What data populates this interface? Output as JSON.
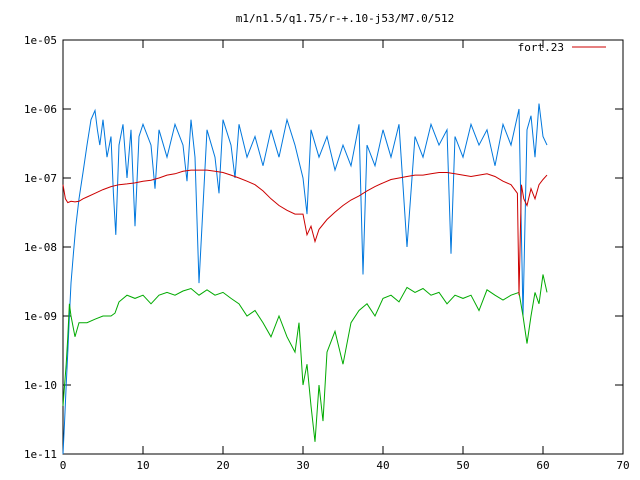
{
  "chart_data": {
    "type": "line",
    "title": "m1/n1.5/q1.75/r-+.10-j53/M7.0/512",
    "xlabel": "",
    "ylabel": "",
    "xlim": [
      0,
      70
    ],
    "ylim": [
      1e-11,
      1e-05
    ],
    "yscale": "log",
    "grid": false,
    "legend_position": "top-right",
    "x_ticks": [
      0,
      10,
      20,
      30,
      40,
      50,
      60,
      70
    ],
    "x_tick_labels": [
      "0",
      "10",
      "20",
      "30",
      "40",
      "50",
      "60",
      "70"
    ],
    "y_ticks": [
      1e-11,
      1e-10,
      1e-09,
      1e-08,
      1e-07,
      1e-06,
      1e-05
    ],
    "y_tick_labels": [
      "1e-11",
      "1e-10",
      "1e-09",
      "1e-08",
      "1e-07",
      "1e-06",
      "1e-05"
    ],
    "series": [
      {
        "name": "fort.23",
        "color": "#cc0000",
        "x": [
          0.0,
          0.3,
          0.6,
          1.0,
          1.5,
          2.0,
          2.5,
          3.0,
          4.0,
          5.0,
          6.0,
          7.0,
          8.0,
          9.0,
          10.0,
          11.0,
          12.0,
          13.0,
          14.0,
          15.0,
          16.0,
          17.0,
          18.0,
          19.0,
          20.0,
          21.0,
          22.0,
          23.0,
          24.0,
          25.0,
          26.0,
          27.0,
          28.0,
          29.0,
          30.0,
          30.5,
          31.0,
          31.5,
          32.0,
          33.0,
          34.0,
          35.0,
          36.0,
          37.0,
          38.0,
          39.0,
          40.0,
          41.0,
          42.0,
          43.0,
          44.0,
          45.0,
          46.0,
          47.0,
          48.0,
          49.0,
          50.0,
          51.0,
          52.0,
          53.0,
          54.0,
          55.0,
          56.0,
          56.8,
          57.0,
          57.3,
          57.6,
          58.0,
          58.5,
          59.0,
          59.5,
          60.0,
          60.5
        ],
        "y": [
          8e-08,
          5e-08,
          4.4e-08,
          4.6e-08,
          4.5e-08,
          4.6e-08,
          5e-08,
          5.3e-08,
          6e-08,
          6.8e-08,
          7.5e-08,
          8e-08,
          8.2e-08,
          8.5e-08,
          9e-08,
          9.3e-08,
          1e-07,
          1.1e-07,
          1.15e-07,
          1.25e-07,
          1.3e-07,
          1.3e-07,
          1.3e-07,
          1.25e-07,
          1.2e-07,
          1.1e-07,
          1e-07,
          9e-08,
          8e-08,
          6.5e-08,
          5e-08,
          4e-08,
          3.4e-08,
          3e-08,
          3e-08,
          1.5e-08,
          2e-08,
          1.2e-08,
          1.8e-08,
          2.5e-08,
          3.2e-08,
          4e-08,
          4.8e-08,
          5.5e-08,
          6.5e-08,
          7.5e-08,
          8.5e-08,
          9.5e-08,
          1e-07,
          1.05e-07,
          1.1e-07,
          1.1e-07,
          1.15e-07,
          1.2e-07,
          1.2e-07,
          1.15e-07,
          1.1e-07,
          1.05e-07,
          1.1e-07,
          1.15e-07,
          1.05e-07,
          9e-08,
          8e-08,
          6e-08,
          2e-09,
          8e-08,
          5e-08,
          4e-08,
          7e-08,
          5e-08,
          8e-08,
          9.5e-08,
          1.1e-07
        ]
      },
      {
        "name": "",
        "color": "#0077dd",
        "x": [
          0.0,
          0.2,
          0.4,
          0.6,
          0.8,
          1.0,
          1.3,
          1.6,
          2.0,
          2.5,
          3.0,
          3.5,
          4.0,
          4.3,
          4.6,
          5.0,
          5.5,
          6.0,
          6.3,
          6.6,
          7.0,
          7.5,
          8.0,
          8.5,
          9.0,
          9.5,
          10.0,
          11.0,
          11.5,
          12.0,
          13.0,
          14.0,
          15.0,
          15.5,
          16.0,
          16.5,
          17.0,
          18.0,
          19.0,
          19.5,
          20.0,
          21.0,
          21.5,
          22.0,
          23.0,
          24.0,
          25.0,
          26.0,
          27.0,
          28.0,
          29.0,
          30.0,
          30.5,
          31.0,
          32.0,
          33.0,
          34.0,
          35.0,
          36.0,
          37.0,
          37.5,
          38.0,
          39.0,
          40.0,
          41.0,
          42.0,
          43.0,
          44.0,
          45.0,
          46.0,
          47.0,
          48.0,
          48.5,
          49.0,
          50.0,
          51.0,
          52.0,
          53.0,
          54.0,
          55.0,
          56.0,
          57.0,
          57.5,
          58.0,
          58.5,
          59.0,
          59.5,
          60.0,
          60.5
        ],
        "y": [
          1e-11,
          3e-11,
          1e-10,
          3e-10,
          1e-09,
          3e-09,
          8e-09,
          2e-08,
          5e-08,
          1.2e-07,
          3e-07,
          7e-07,
          9.5e-07,
          5e-07,
          3e-07,
          7e-07,
          2e-07,
          4e-07,
          6e-08,
          1.5e-08,
          3e-07,
          6e-07,
          1e-07,
          5e-07,
          2e-08,
          4e-07,
          6e-07,
          3e-07,
          7e-08,
          5e-07,
          2e-07,
          6e-07,
          3e-07,
          9e-08,
          7e-07,
          2e-07,
          3e-09,
          5e-07,
          2e-07,
          6e-08,
          7e-07,
          3e-07,
          1e-07,
          6e-07,
          2e-07,
          4e-07,
          1.5e-07,
          5e-07,
          2e-07,
          7e-07,
          3e-07,
          1e-07,
          3e-08,
          5e-07,
          2e-07,
          4e-07,
          1.3e-07,
          3e-07,
          1.5e-07,
          6e-07,
          4e-09,
          3e-07,
          1.5e-07,
          5e-07,
          2e-07,
          6e-07,
          1e-08,
          4e-07,
          2e-07,
          6e-07,
          3e-07,
          5e-07,
          8e-09,
          4e-07,
          2e-07,
          6e-07,
          3e-07,
          5e-07,
          1.5e-07,
          6e-07,
          3e-07,
          1e-06,
          1e-09,
          5e-07,
          8e-07,
          2e-07,
          1.2e-06,
          4e-07,
          3e-07
        ]
      },
      {
        "name": "",
        "color": "#00aa00",
        "x": [
          0.0,
          0.2,
          0.4,
          0.6,
          0.8,
          1.0,
          1.5,
          2.0,
          3.0,
          4.0,
          5.0,
          6.0,
          6.5,
          7.0,
          8.0,
          9.0,
          10.0,
          11.0,
          12.0,
          13.0,
          14.0,
          15.0,
          16.0,
          17.0,
          18.0,
          19.0,
          20.0,
          21.0,
          22.0,
          23.0,
          24.0,
          25.0,
          26.0,
          27.0,
          28.0,
          29.0,
          29.5,
          30.0,
          30.5,
          31.0,
          31.5,
          32.0,
          32.5,
          33.0,
          34.0,
          35.0,
          36.0,
          37.0,
          38.0,
          39.0,
          40.0,
          41.0,
          42.0,
          43.0,
          44.0,
          45.0,
          46.0,
          47.0,
          48.0,
          49.0,
          50.0,
          51.0,
          52.0,
          53.0,
          54.0,
          55.0,
          56.0,
          57.0,
          57.5,
          58.0,
          58.5,
          59.0,
          59.5,
          60.0,
          60.5
        ],
        "y": [
          5e-11,
          1e-10,
          2e-10,
          5e-10,
          1.5e-09,
          1e-09,
          5e-10,
          8e-10,
          8e-10,
          9e-10,
          1e-09,
          1e-09,
          1.1e-09,
          1.6e-09,
          2e-09,
          1.8e-09,
          2e-09,
          1.5e-09,
          2e-09,
          2.2e-09,
          2e-09,
          2.3e-09,
          2.5e-09,
          2e-09,
          2.4e-09,
          2e-09,
          2.2e-09,
          1.8e-09,
          1.5e-09,
          1e-09,
          1.2e-09,
          8e-10,
          5e-10,
          1e-09,
          5e-10,
          3e-10,
          8e-10,
          1e-10,
          2e-10,
          5e-11,
          1.5e-11,
          1e-10,
          3e-11,
          3e-10,
          6e-10,
          2e-10,
          8e-10,
          1.2e-09,
          1.5e-09,
          1e-09,
          1.8e-09,
          2e-09,
          1.6e-09,
          2.6e-09,
          2.2e-09,
          2.5e-09,
          2e-09,
          2.2e-09,
          1.5e-09,
          2e-09,
          1.8e-09,
          2e-09,
          1.2e-09,
          2.4e-09,
          2e-09,
          1.7e-09,
          2e-09,
          2.2e-09,
          1e-09,
          4e-10,
          1e-09,
          2.2e-09,
          1.5e-09,
          4e-09,
          2.2e-09
        ]
      }
    ]
  }
}
